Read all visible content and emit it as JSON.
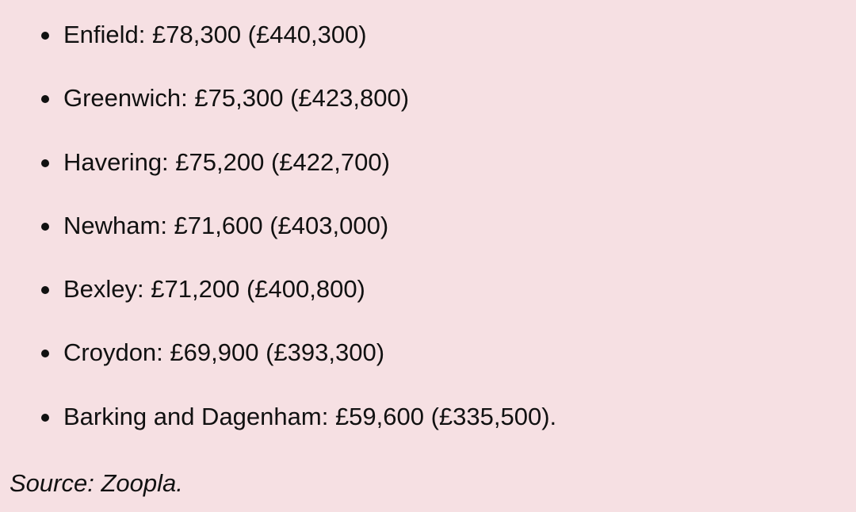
{
  "items": [
    {
      "text": "Enfield: £78,300 (£440,300)"
    },
    {
      "text": "Greenwich: £75,300 (£423,800)"
    },
    {
      "text": "Havering: £75,200 (£422,700)"
    },
    {
      "text": "Newham: £71,600 (£403,000)"
    },
    {
      "text": "Bexley: £71,200 (£400,800)"
    },
    {
      "text": "Croydon: £69,900 (£393,300)"
    },
    {
      "text": "Barking and Dagenham: £59,600 (£335,500)."
    }
  ],
  "source": "Source: Zoopla.",
  "colors": {
    "background": "#f6e0e3",
    "text": "#111111"
  }
}
